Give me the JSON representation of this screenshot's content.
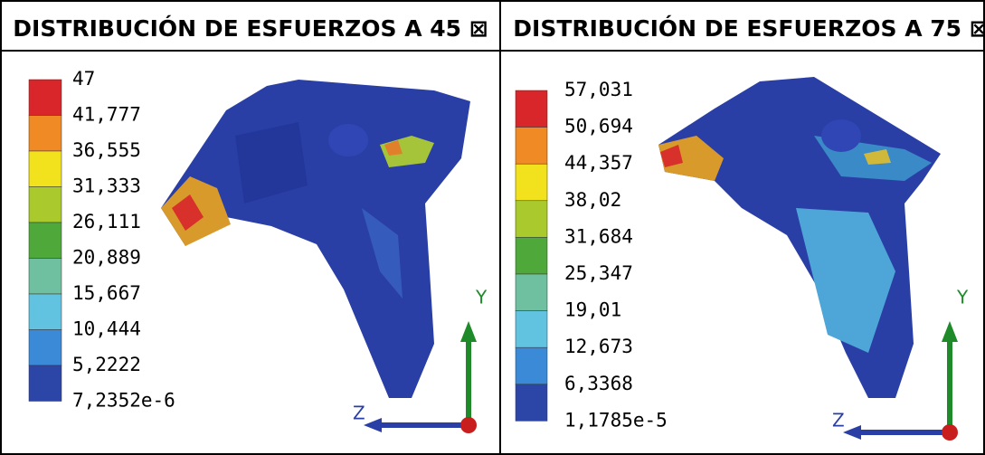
{
  "panels": [
    {
      "title": "DISTRIBUCIÓN DE ESFUERZOS A 45 ⊠",
      "legend": [
        "47",
        "41,777",
        "36,555",
        "31,333",
        "26,111",
        "20,889",
        "15,667",
        "10,444",
        "5,2222",
        "7,2352e-6"
      ],
      "axes": {
        "y": "Y",
        "z": "Z"
      }
    },
    {
      "title": "DISTRIBUCIÓN DE ESFUERZOS A 75 ⊠",
      "legend": [
        "57,031",
        "50,694",
        "44,357",
        "38,02",
        "31,684",
        "25,347",
        "19,01",
        "12,673",
        "6,3368",
        "1,1785e-5"
      ],
      "axes": {
        "y": "Y",
        "z": "Z"
      }
    }
  ]
}
